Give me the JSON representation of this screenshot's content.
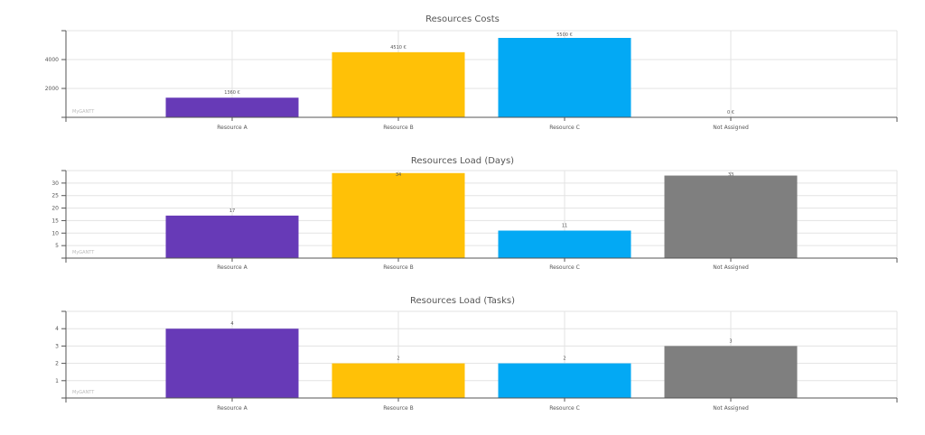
{
  "watermark": "MyGANTT",
  "colors": {
    "purple": "#673ab7",
    "yellow": "#ffc107",
    "blue": "#03a9f4",
    "gray": "#7f7f7f",
    "grid": "#e3e3e3",
    "axis": "#555555"
  },
  "chart_data": [
    {
      "type": "bar",
      "title": "Resources Costs",
      "categories": [
        "Resource A",
        "Resource B",
        "Resource C",
        "Not Assigned"
      ],
      "values": [
        1360,
        4510,
        5500,
        0
      ],
      "value_labels": [
        "1360 €",
        "4510 €",
        "5500 €",
        "0 €"
      ],
      "bar_colors": [
        "#673ab7",
        "#ffc107",
        "#03a9f4",
        "#7f7f7f"
      ],
      "yticks": [
        2000,
        4000
      ],
      "ylim": [
        0,
        6000
      ],
      "grid": true
    },
    {
      "type": "bar",
      "title": "Resources Load (Days)",
      "categories": [
        "Resource A",
        "Resource B",
        "Resource C",
        "Not Assigned"
      ],
      "values": [
        17,
        34,
        11,
        33
      ],
      "value_labels": [
        "17",
        "34",
        "11",
        "33"
      ],
      "bar_colors": [
        "#673ab7",
        "#ffc107",
        "#03a9f4",
        "#7f7f7f"
      ],
      "yticks": [
        5,
        10,
        15,
        20,
        25,
        30
      ],
      "ylim": [
        0,
        35
      ],
      "grid": true
    },
    {
      "type": "bar",
      "title": "Resources Load (Tasks)",
      "categories": [
        "Resource A",
        "Resource B",
        "Resource C",
        "Not Assigned"
      ],
      "values": [
        4,
        2,
        2,
        3
      ],
      "value_labels": [
        "4",
        "2",
        "2",
        "3"
      ],
      "bar_colors": [
        "#673ab7",
        "#ffc107",
        "#03a9f4",
        "#7f7f7f"
      ],
      "yticks": [
        1,
        2,
        3,
        4
      ],
      "ylim": [
        0,
        5
      ],
      "grid": true
    }
  ]
}
